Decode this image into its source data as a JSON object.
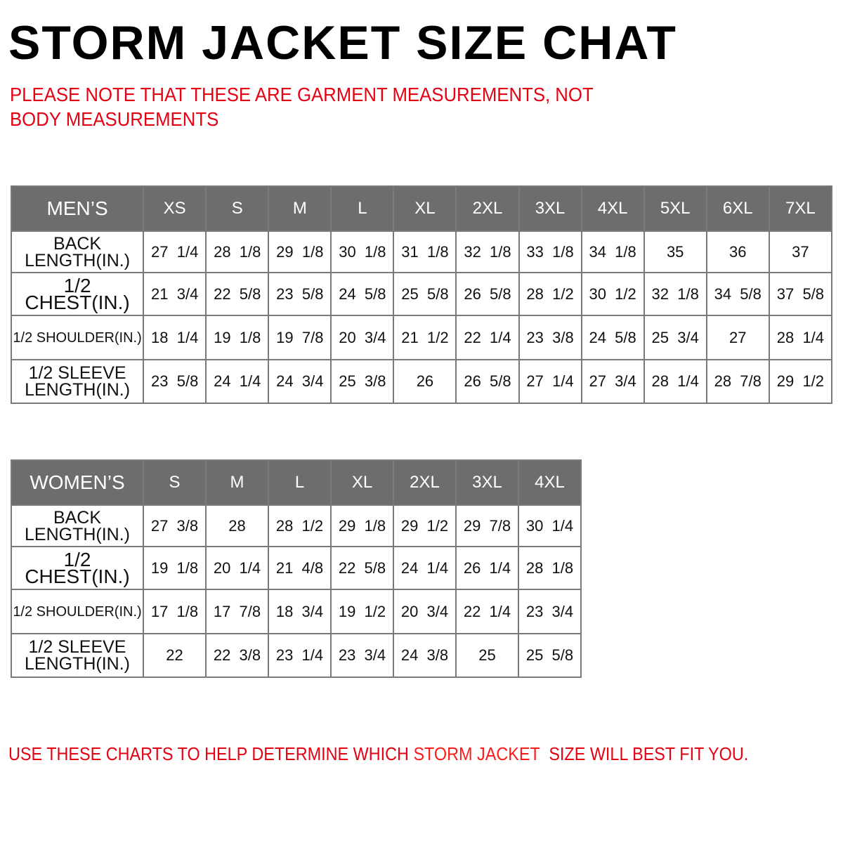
{
  "title": "STORM JACKET SIZE CHAT",
  "note": "PLEASE NOTE THAT THESE ARE GARMENT MEASUREMENTS, NOT BODY MEASUREMENTS",
  "colors": {
    "header_bg": "#6d6d6d",
    "note_red": "#e60012",
    "border": "#7a7a7a"
  },
  "mens": {
    "header": "MEN’S",
    "sizes": [
      "XS",
      "S",
      "M",
      "L",
      "XL",
      "2XL",
      "3XL",
      "4XL",
      "5XL",
      "6XL",
      "7XL"
    ],
    "rows": [
      {
        "label": "BACK LENGTH(IN.)",
        "values": [
          "27  1/4",
          "28  1/8",
          "29  1/8",
          "30  1/8",
          "31  1/8",
          "32  1/8",
          "33  1/8",
          "34  1/8",
          "35",
          "36",
          "37"
        ]
      },
      {
        "label": "1/2  CHEST(IN.)",
        "values": [
          "21  3/4",
          "22  5/8",
          "23  5/8",
          "24  5/8",
          "25  5/8",
          "26  5/8",
          "28  1/2",
          "30  1/2",
          "32  1/8",
          "34  5/8",
          "37  5/8"
        ]
      },
      {
        "label": "1/2  SHOULDER(IN.)",
        "values": [
          "18  1/4",
          "19  1/8",
          "19  7/8",
          "20  3/4",
          "21  1/2",
          "22  1/4",
          "23  3/8",
          "24  5/8",
          "25  3/4",
          "27",
          "28  1/4"
        ]
      },
      {
        "label": "1/2  SLEEVE LENGTH(IN.)",
        "values": [
          "23  5/8",
          "24  1/4",
          "24  3/4",
          "25  3/8",
          "26",
          "26  5/8",
          "27  1/4",
          "27  3/4",
          "28  1/4",
          "28  7/8",
          "29  1/2"
        ]
      }
    ]
  },
  "womens": {
    "header": "WOMEN’S",
    "sizes": [
      "S",
      "M",
      "L",
      "XL",
      "2XL",
      "3XL",
      "4XL"
    ],
    "rows": [
      {
        "label": "BACK LENGTH(IN.)",
        "values": [
          "27  3/8",
          "28",
          "28  1/2",
          "29  1/8",
          "29  1/2",
          "29  7/8",
          "30  1/4"
        ]
      },
      {
        "label": "1/2  CHEST(IN.)",
        "values": [
          "19  1/8",
          "20  1/4",
          "21  4/8",
          "22  5/8",
          "24  1/4",
          "26  1/4",
          "28  1/8"
        ]
      },
      {
        "label": "1/2  SHOULDER(IN.)",
        "values": [
          "17  1/8",
          "17  7/8",
          "18  3/4",
          "19  1/2",
          "20  3/4",
          "22  1/4",
          "23  3/4"
        ]
      },
      {
        "label": "1/2  SLEEVE LENGTH(IN.)",
        "values": [
          "22",
          "22  3/8",
          "23  1/4",
          "23  3/4",
          "24  3/8",
          "25",
          "25  5/8"
        ]
      }
    ]
  },
  "footer": {
    "before": "USE THESE CHARTS TO HELP DETERMINE WHICH ",
    "highlight": "STORM JACKET",
    "after": "  SIZE WILL BEST FIT YOU."
  }
}
